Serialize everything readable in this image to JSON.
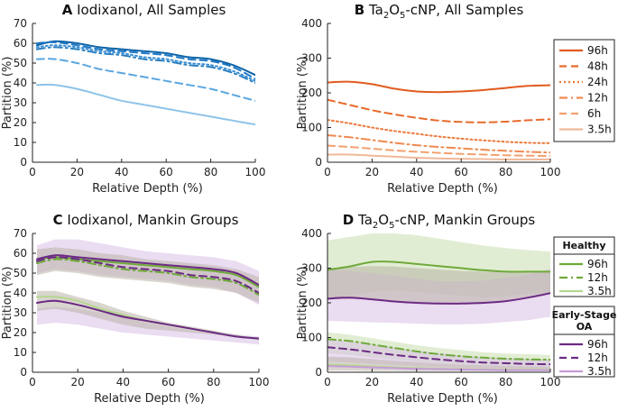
{
  "colors": {
    "blue_96": "#0b63a8",
    "blue_48": "#1f77c4",
    "blue_24": "#3a8fd6",
    "blue_12": "#2b7fc0",
    "blue_6": "#5aa6e0",
    "blue_35": "#8ec3e8",
    "orange_96": "#e15b1f",
    "orange_48": "#e86a2c",
    "orange_24": "#ec7a3d",
    "orange_12": "#ef8a50",
    "orange_6": "#f2a070",
    "orange_35": "#f0b89a",
    "green": "#6fa93a",
    "green_light": "#b5d68f",
    "green_band": "#c8dfae",
    "purple": "#6b2a83",
    "purple_light": "#c79bd9",
    "purple_band": "#d8bfe5",
    "gray_band": "#b9b3a8"
  },
  "chart_data": [
    {
      "id": "A",
      "type": "line",
      "letter": "A",
      "title": "Iodixanol, All Samples",
      "xlabel": "Relative Depth (%)",
      "ylabel": "Partition (%)",
      "xlim": [
        0,
        100
      ],
      "ylim": [
        0,
        70
      ],
      "xticks": [
        "0",
        "20",
        "40",
        "60",
        "80",
        "100"
      ],
      "yticks": [
        "0",
        "10",
        "20",
        "30",
        "40",
        "50",
        "60",
        "70"
      ],
      "x": [
        2,
        10,
        20,
        30,
        40,
        50,
        60,
        70,
        80,
        90,
        100
      ],
      "series": [
        {
          "name": "96h",
          "color": "blue_96",
          "dash": "solid",
          "values": [
            59,
            61,
            60,
            58,
            57,
            56,
            55,
            53,
            52,
            49,
            44
          ]
        },
        {
          "name": "48h",
          "color": "blue_48",
          "dash": "dashed",
          "values": [
            60,
            60.5,
            59,
            57,
            56,
            55,
            54,
            52,
            51,
            48,
            42
          ]
        },
        {
          "name": "24h",
          "color": "blue_24",
          "dash": "dotted",
          "values": [
            58,
            59,
            58,
            56,
            55,
            53,
            52,
            50,
            49,
            46,
            41
          ]
        },
        {
          "name": "12h",
          "color": "blue_12",
          "dash": "dashdot",
          "values": [
            57,
            58,
            57,
            55,
            54,
            52,
            51,
            49,
            48,
            45,
            40
          ]
        },
        {
          "name": "6h",
          "color": "blue_6",
          "dash": "dashed",
          "values": [
            52,
            52,
            50,
            47,
            45,
            43,
            41,
            39,
            37,
            34,
            31
          ]
        },
        {
          "name": "3.5h",
          "color": "blue_35",
          "dash": "solid",
          "values": [
            39,
            39,
            37,
            34,
            31,
            29,
            27,
            25,
            23,
            21,
            19
          ]
        }
      ]
    },
    {
      "id": "B",
      "type": "line",
      "letter": "B",
      "title": "Ta2O5-cNP, All Samples",
      "title_parts": [
        "Ta",
        "2",
        "O",
        "5",
        "-cNP, All Samples"
      ],
      "xlabel": "Relative Depth (%)",
      "ylabel": "Partition (%)",
      "xlim": [
        0,
        100
      ],
      "ylim": [
        0,
        400
      ],
      "xticks": [
        "0",
        "20",
        "40",
        "60",
        "80",
        "100"
      ],
      "yticks": [
        "0",
        "100",
        "200",
        "300",
        "400"
      ],
      "x": [
        0,
        10,
        20,
        30,
        40,
        50,
        60,
        70,
        80,
        90,
        100
      ],
      "series": [
        {
          "name": "96h",
          "color": "orange_96",
          "dash": "solid",
          "values": [
            230,
            232,
            225,
            212,
            204,
            202,
            204,
            208,
            214,
            220,
            222
          ]
        },
        {
          "name": "48h",
          "color": "orange_48",
          "dash": "dashed",
          "values": [
            180,
            165,
            150,
            138,
            128,
            120,
            116,
            115,
            117,
            121,
            124
          ]
        },
        {
          "name": "24h",
          "color": "orange_24",
          "dash": "dotted",
          "values": [
            122,
            112,
            100,
            90,
            82,
            74,
            68,
            63,
            59,
            56,
            55
          ]
        },
        {
          "name": "12h",
          "color": "orange_12",
          "dash": "dashdot",
          "values": [
            78,
            72,
            64,
            56,
            49,
            44,
            40,
            36,
            33,
            30,
            28
          ]
        },
        {
          "name": "6h",
          "color": "orange_6",
          "dash": "dashed",
          "values": [
            48,
            44,
            39,
            34,
            30,
            27,
            24,
            22,
            20,
            19,
            18
          ]
        },
        {
          "name": "3.5h",
          "color": "orange_35",
          "dash": "solid",
          "values": [
            22,
            22,
            19,
            16,
            13,
            11,
            10,
            9,
            8,
            8,
            8
          ]
        }
      ],
      "legend": [
        "96h",
        "48h",
        "24h",
        "12h",
        "6h",
        "3.5h"
      ]
    },
    {
      "id": "C",
      "type": "line",
      "letter": "C",
      "title": "Iodixanol, Mankin Groups",
      "xlabel": "Relative Depth (%)",
      "ylabel": "Partition (%)",
      "xlim": [
        0,
        100
      ],
      "ylim": [
        0,
        70
      ],
      "xticks": [
        "0",
        "20",
        "40",
        "60",
        "80",
        "100"
      ],
      "yticks": [
        "0",
        "10",
        "20",
        "30",
        "40",
        "50",
        "60",
        "70"
      ],
      "x": [
        2,
        10,
        20,
        30,
        40,
        50,
        60,
        70,
        80,
        90,
        100
      ],
      "bands": [
        {
          "color": "purple_band",
          "upper": [
            64,
            67,
            67,
            65,
            63,
            61,
            60,
            59,
            58,
            56,
            51
          ],
          "lower": [
            50,
            52,
            51,
            49,
            48,
            47,
            46,
            44,
            43,
            40,
            34
          ]
        },
        {
          "color": "gray_band",
          "upper": [
            62,
            63,
            62,
            60,
            59,
            57,
            56,
            55,
            54,
            52,
            48
          ],
          "lower": [
            49,
            51,
            50,
            48,
            47,
            46,
            45,
            43,
            42,
            40,
            35
          ]
        },
        {
          "color": "purple_band",
          "upper": [
            32,
            33,
            32,
            30,
            28,
            25,
            23,
            21,
            20,
            19,
            18
          ],
          "lower": [
            24,
            25,
            24,
            22,
            20,
            19,
            18,
            17,
            16,
            15,
            14
          ]
        },
        {
          "color": "gray_band",
          "upper": [
            41,
            41,
            38,
            35,
            31,
            28,
            25,
            23,
            21,
            19,
            17
          ],
          "lower": [
            31,
            32,
            30,
            27,
            24,
            22,
            21,
            20,
            19,
            18,
            16
          ]
        }
      ],
      "series": [
        {
          "name": "Healthy 96h",
          "color": "green",
          "dash": "solid",
          "values": [
            57,
            58,
            57,
            56,
            55,
            54,
            53,
            52,
            51,
            49,
            43
          ]
        },
        {
          "name": "Healthy 12h",
          "color": "green",
          "dash": "dashdot",
          "values": [
            55,
            57,
            56,
            54,
            52,
            51,
            50,
            48,
            47,
            45,
            39
          ]
        },
        {
          "name": "Early-Stage OA 96h",
          "color": "purple",
          "dash": "solid",
          "values": [
            57,
            59,
            58,
            57,
            56,
            55,
            54,
            53,
            52,
            50,
            44
          ]
        },
        {
          "name": "Early-Stage OA 12h",
          "color": "purple",
          "dash": "dashed",
          "values": [
            56,
            58,
            57,
            55,
            53,
            52,
            51,
            49,
            48,
            46,
            40
          ]
        },
        {
          "name": "Healthy 3.5h",
          "color": "green_light",
          "dash": "solid",
          "values": [
            38,
            38,
            36,
            32,
            29,
            26,
            24,
            22,
            20,
            18,
            17
          ]
        },
        {
          "name": "Early-Stage OA 3.5h",
          "color": "purple",
          "dash": "solid",
          "values": [
            35,
            36,
            34,
            31,
            28,
            26,
            24,
            22,
            20,
            18,
            17
          ]
        }
      ]
    },
    {
      "id": "D",
      "type": "line",
      "letter": "D",
      "title": "Ta2O5-cNP, Mankin Groups",
      "title_parts": [
        "Ta",
        "2",
        "O",
        "5",
        "-cNP, Mankin Groups"
      ],
      "xlabel": "Relative Depth (%)",
      "ylabel": "Partition (%)",
      "xlim": [
        0,
        100
      ],
      "ylim": [
        0,
        400
      ],
      "xticks": [
        "0",
        "20",
        "40",
        "60",
        "80",
        "100"
      ],
      "yticks": [
        "0",
        "100",
        "200",
        "300",
        "400"
      ],
      "x": [
        0,
        10,
        20,
        30,
        40,
        50,
        60,
        70,
        80,
        90,
        100
      ],
      "bands": [
        {
          "color": "green_band",
          "upper": [
            380,
            390,
            400,
            400,
            395,
            385,
            375,
            365,
            358,
            352,
            348
          ],
          "lower": [
            210,
            222,
            232,
            236,
            232,
            226,
            220,
            216,
            220,
            226,
            232
          ]
        },
        {
          "color": "purple_band",
          "upper": [
            295,
            292,
            285,
            278,
            270,
            262,
            262,
            264,
            272,
            282,
            298
          ],
          "lower": [
            148,
            146,
            144,
            142,
            140,
            138,
            138,
            140,
            145,
            150,
            160
          ]
        },
        {
          "color": "gray_band",
          "upper": [
            300,
            303,
            306,
            305,
            300,
            296,
            292,
            290,
            290,
            292,
            292
          ],
          "lower": [
            210,
            212,
            210,
            205,
            200,
            198,
            198,
            200,
            208,
            218,
            228
          ]
        },
        {
          "color": "green_band",
          "upper": [
            115,
            108,
            98,
            88,
            78,
            70,
            64,
            58,
            54,
            52,
            50
          ],
          "lower": [
            55,
            50,
            42,
            36,
            30,
            26,
            22,
            20,
            18,
            17,
            16
          ]
        },
        {
          "color": "purple_band",
          "upper": [
            95,
            88,
            80,
            70,
            62,
            55,
            48,
            43,
            40,
            38,
            36
          ],
          "lower": [
            30,
            28,
            24,
            20,
            17,
            15,
            13,
            12,
            11,
            10,
            10
          ]
        },
        {
          "color": "gray_band",
          "upper": [
            45,
            43,
            38,
            33,
            29,
            25,
            22,
            20,
            18,
            17,
            16
          ],
          "lower": [
            5,
            5,
            4,
            4,
            3,
            3,
            3,
            3,
            3,
            3,
            3
          ]
        }
      ],
      "series": [
        {
          "name": "Healthy 96h",
          "color": "green",
          "dash": "solid",
          "values": [
            295,
            305,
            318,
            318,
            312,
            306,
            300,
            294,
            290,
            290,
            290
          ]
        },
        {
          "name": "Early-Stage OA 96h",
          "color": "purple",
          "dash": "solid",
          "values": [
            212,
            215,
            210,
            204,
            200,
            198,
            198,
            200,
            205,
            215,
            228
          ]
        },
        {
          "name": "Healthy 12h",
          "color": "green",
          "dash": "dashdot",
          "values": [
            95,
            90,
            80,
            70,
            60,
            52,
            46,
            42,
            39,
            37,
            36
          ]
        },
        {
          "name": "Early-Stage OA 12h",
          "color": "purple",
          "dash": "dashed",
          "values": [
            72,
            66,
            58,
            50,
            43,
            37,
            32,
            28,
            26,
            24,
            23
          ]
        },
        {
          "name": "Healthy 3.5h",
          "color": "green_light",
          "dash": "solid",
          "values": [
            22,
            20,
            17,
            14,
            12,
            10,
            9,
            8,
            7,
            7,
            7
          ]
        },
        {
          "name": "Early-Stage OA 3.5h",
          "color": "purple_light",
          "dash": "solid",
          "values": [
            18,
            16,
            14,
            12,
            10,
            9,
            8,
            7,
            6,
            6,
            6
          ]
        }
      ],
      "legend_groups": [
        {
          "heading": "Healthy",
          "entries": [
            {
              "label": "96h",
              "color": "green",
              "dash": "solid"
            },
            {
              "label": "12h",
              "color": "green",
              "dash": "dashdot"
            },
            {
              "label": "3.5h",
              "color": "green_light",
              "dash": "solid"
            }
          ]
        },
        {
          "heading_lines": [
            "Early-Stage",
            "OA"
          ],
          "entries": [
            {
              "label": "96h",
              "color": "purple",
              "dash": "solid"
            },
            {
              "label": "12h",
              "color": "purple",
              "dash": "dashed"
            },
            {
              "label": "3.5h",
              "color": "purple_light",
              "dash": "solid"
            }
          ]
        }
      ]
    }
  ]
}
